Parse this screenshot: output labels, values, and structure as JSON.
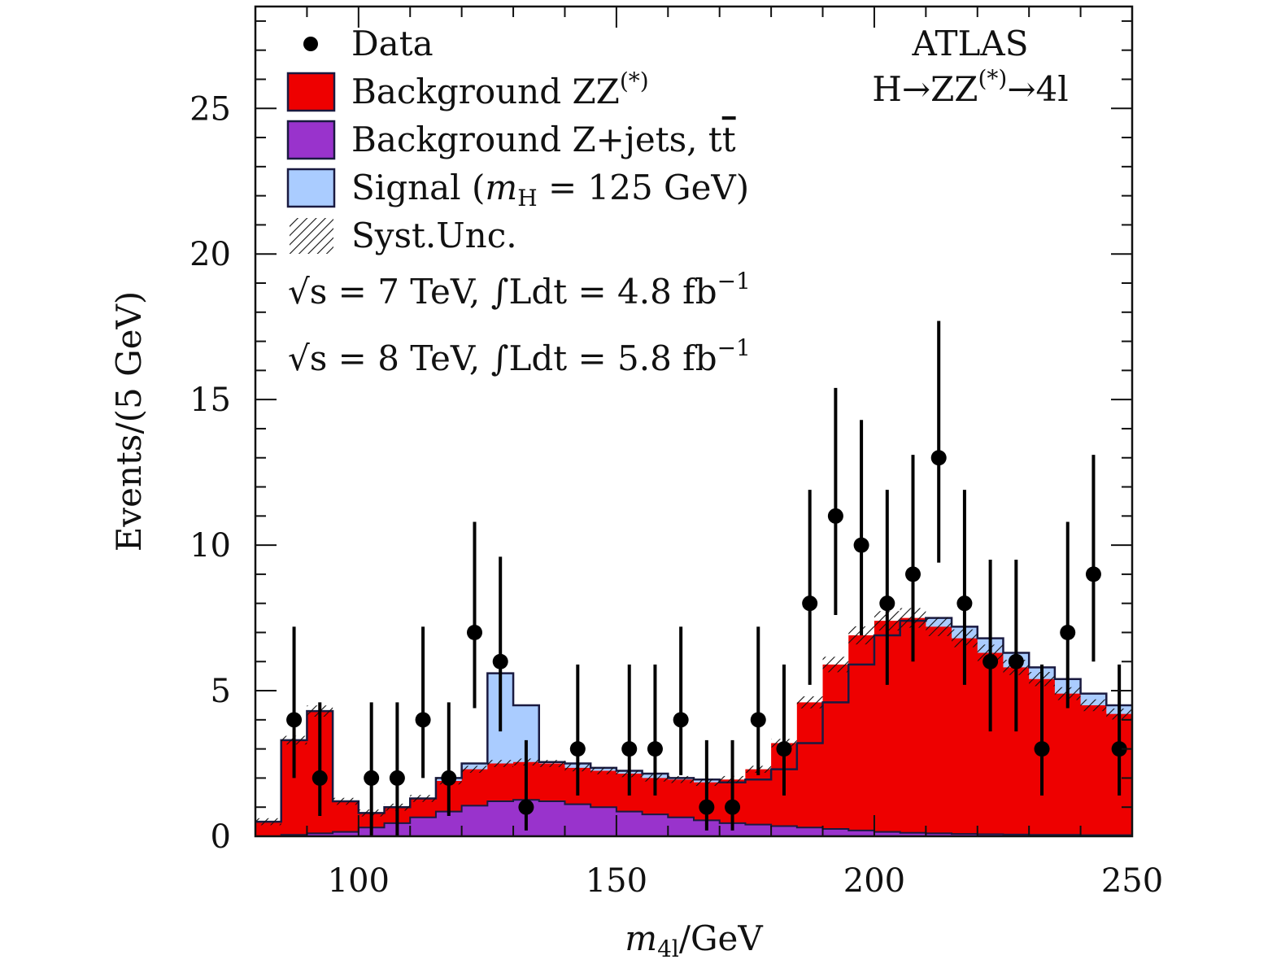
{
  "colors": {
    "zz": "#ee0000",
    "zjets": "#9933cc",
    "signal": "#aaccff",
    "outline": "#1a1a40",
    "data": "#000000"
  },
  "labels": {
    "experiment": "ATLAS",
    "process": "H→ZZ",
    "process_sup": "(*)",
    "process_tail": "→4l",
    "ylabel": "Events/(5 GeV)",
    "xlabel_main": "m",
    "xlabel_sub": "4l",
    "xlabel_unit": "/GeV",
    "lumi_7": "√s = 7 TeV, ∫Ldt = 4.8 fb",
    "lumi_7_sup": "−1",
    "lumi_8": "√s = 8 TeV, ∫Ldt = 5.8 fb",
    "lumi_8_sup": "−1"
  },
  "legend": {
    "data": "Data",
    "zz": "Background ZZ",
    "zz_sup": "(*)",
    "zjets": "Background Z+jets, t",
    "zjets_bar": "t",
    "signal_a": "Signal (",
    "signal_m": "m",
    "signal_sub": "H",
    "signal_b": " = 125 GeV)",
    "syst": "Syst.Unc."
  },
  "chart_data": {
    "type": "histogram",
    "xlim": [
      80,
      250
    ],
    "ylim": [
      0,
      28.5
    ],
    "bin_width": 5,
    "x_ticks": [
      100,
      150,
      200,
      250
    ],
    "y_ticks": [
      0,
      5,
      10,
      15,
      20,
      25
    ],
    "bins_lo": [
      80,
      85,
      90,
      95,
      100,
      105,
      110,
      115,
      120,
      125,
      130,
      135,
      140,
      145,
      150,
      155,
      160,
      165,
      170,
      175,
      180,
      185,
      190,
      195,
      200,
      205,
      210,
      215,
      220,
      225,
      230,
      235,
      240,
      245
    ],
    "zjets": [
      0.0,
      0.05,
      0.1,
      0.15,
      0.3,
      0.45,
      0.65,
      0.85,
      1.05,
      1.2,
      1.25,
      1.2,
      1.1,
      1.0,
      0.85,
      0.75,
      0.65,
      0.55,
      0.45,
      0.4,
      0.35,
      0.3,
      0.25,
      0.2,
      0.15,
      0.12,
      0.1,
      0.08,
      0.07,
      0.06,
      0.05,
      0.05,
      0.04,
      0.04
    ],
    "zz_total": [
      0.5,
      3.3,
      4.3,
      1.2,
      0.8,
      1.0,
      1.3,
      1.9,
      2.3,
      2.5,
      2.55,
      2.5,
      2.35,
      2.25,
      2.15,
      2.0,
      1.95,
      1.85,
      1.95,
      2.3,
      3.2,
      4.6,
      5.9,
      6.9,
      7.4,
      7.5,
      7.2,
      6.8,
      6.3,
      5.8,
      5.4,
      4.9,
      4.5,
      4.2
    ],
    "signal_total": [
      0.5,
      3.3,
      4.3,
      1.2,
      0.8,
      1.0,
      1.3,
      2.0,
      2.5,
      5.6,
      4.5,
      2.55,
      2.5,
      2.35,
      2.25,
      2.15,
      2.0,
      1.95,
      1.85,
      1.95,
      2.3,
      3.2,
      4.6,
      5.9,
      6.9,
      7.4,
      7.5,
      7.2,
      6.8,
      6.3,
      5.8,
      5.4,
      4.9,
      4.5
    ],
    "data_points": [
      {
        "x": 87.5,
        "y": 4,
        "lo": 2.0,
        "hi": 7.2
      },
      {
        "x": 92.5,
        "y": 2,
        "lo": 0.7,
        "hi": 4.6
      },
      {
        "x": 102.5,
        "y": 2,
        "lo": 0.0,
        "hi": 4.6
      },
      {
        "x": 107.5,
        "y": 2,
        "lo": 0.0,
        "hi": 4.6
      },
      {
        "x": 112.5,
        "y": 4,
        "lo": 2.0,
        "hi": 7.2
      },
      {
        "x": 117.5,
        "y": 2,
        "lo": 0.7,
        "hi": 4.6
      },
      {
        "x": 122.5,
        "y": 7,
        "lo": 4.4,
        "hi": 10.8
      },
      {
        "x": 127.5,
        "y": 6,
        "lo": 3.6,
        "hi": 9.6
      },
      {
        "x": 132.5,
        "y": 1,
        "lo": 0.2,
        "hi": 3.3
      },
      {
        "x": 142.5,
        "y": 3,
        "lo": 1.4,
        "hi": 5.9
      },
      {
        "x": 152.5,
        "y": 3,
        "lo": 1.4,
        "hi": 5.9
      },
      {
        "x": 157.5,
        "y": 3,
        "lo": 1.4,
        "hi": 5.9
      },
      {
        "x": 162.5,
        "y": 4,
        "lo": 2.1,
        "hi": 7.2
      },
      {
        "x": 167.5,
        "y": 1,
        "lo": 0.2,
        "hi": 3.3
      },
      {
        "x": 172.5,
        "y": 1,
        "lo": 0.2,
        "hi": 3.3
      },
      {
        "x": 177.5,
        "y": 4,
        "lo": 2.1,
        "hi": 7.2
      },
      {
        "x": 182.5,
        "y": 3,
        "lo": 1.4,
        "hi": 5.9
      },
      {
        "x": 187.5,
        "y": 8,
        "lo": 5.2,
        "hi": 11.9
      },
      {
        "x": 192.5,
        "y": 11,
        "lo": 7.6,
        "hi": 15.4
      },
      {
        "x": 197.5,
        "y": 10,
        "lo": 6.9,
        "hi": 14.3
      },
      {
        "x": 202.5,
        "y": 8,
        "lo": 5.2,
        "hi": 11.9
      },
      {
        "x": 207.5,
        "y": 9,
        "lo": 6.0,
        "hi": 13.1
      },
      {
        "x": 212.5,
        "y": 13,
        "lo": 9.4,
        "hi": 17.7
      },
      {
        "x": 217.5,
        "y": 8,
        "lo": 5.2,
        "hi": 11.9
      },
      {
        "x": 222.5,
        "y": 6,
        "lo": 3.6,
        "hi": 9.5
      },
      {
        "x": 227.5,
        "y": 6,
        "lo": 3.6,
        "hi": 9.5
      },
      {
        "x": 232.5,
        "y": 3,
        "lo": 1.4,
        "hi": 5.9
      },
      {
        "x": 237.5,
        "y": 7,
        "lo": 4.4,
        "hi": 10.8
      },
      {
        "x": 242.5,
        "y": 9,
        "lo": 6.0,
        "hi": 13.1
      },
      {
        "x": 247.5,
        "y": 3,
        "lo": 1.4,
        "hi": 5.9
      }
    ]
  }
}
